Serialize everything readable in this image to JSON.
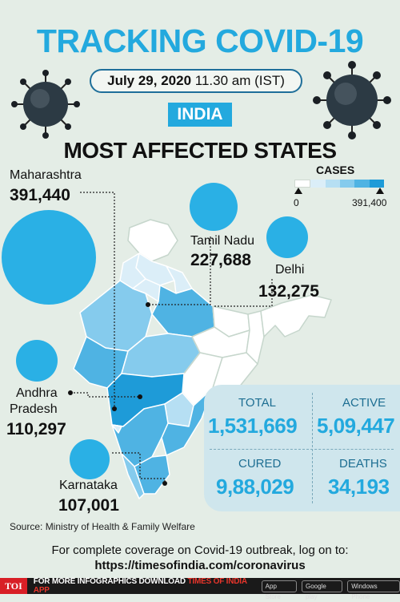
{
  "header": {
    "title": "TRACKING COVID-19",
    "date": "July 29, 2020",
    "time": "11.30 am (IST)",
    "country": "INDIA",
    "subtitle": "MOST AFFECTED STATES"
  },
  "legend": {
    "title": "CASES",
    "min": "0",
    "max": "391,400",
    "colors": [
      "#ffffff",
      "#dbeef8",
      "#b6dff3",
      "#85cbed",
      "#4fb3e3",
      "#1e9bd8"
    ]
  },
  "states": [
    {
      "name": "Maharashtra",
      "cases": "391,440"
    },
    {
      "name": "Tamil Nadu",
      "cases": "227,688"
    },
    {
      "name": "Delhi",
      "cases": "132,275"
    },
    {
      "name_line1": "Andhra",
      "name_line2": "Pradesh",
      "cases": "110,297"
    },
    {
      "name": "Karnataka",
      "cases": "107,001"
    }
  ],
  "stats": {
    "total_label": "TOTAL",
    "total_value": "1,531,669",
    "active_label": "ACTIVE",
    "active_value": "5,09,447",
    "cured_label": "CURED",
    "cured_value": "9,88,029",
    "deaths_label": "DEATHS",
    "deaths_value": "34,193"
  },
  "source": "Source: Ministry of Health & Family Welfare",
  "coverage": "For complete coverage on Covid-19 outbreak, log on to:",
  "url": "https://timesofindia.com/coronavirus",
  "footer": {
    "logo": "TOI",
    "text_a": "FOR MORE  INFOGRAPHICS DOWNLOAD ",
    "text_b": "TIMES OF INDIA  APP",
    "store1": "App Store",
    "store2": "Google play",
    "store3": "Windows Phone"
  }
}
